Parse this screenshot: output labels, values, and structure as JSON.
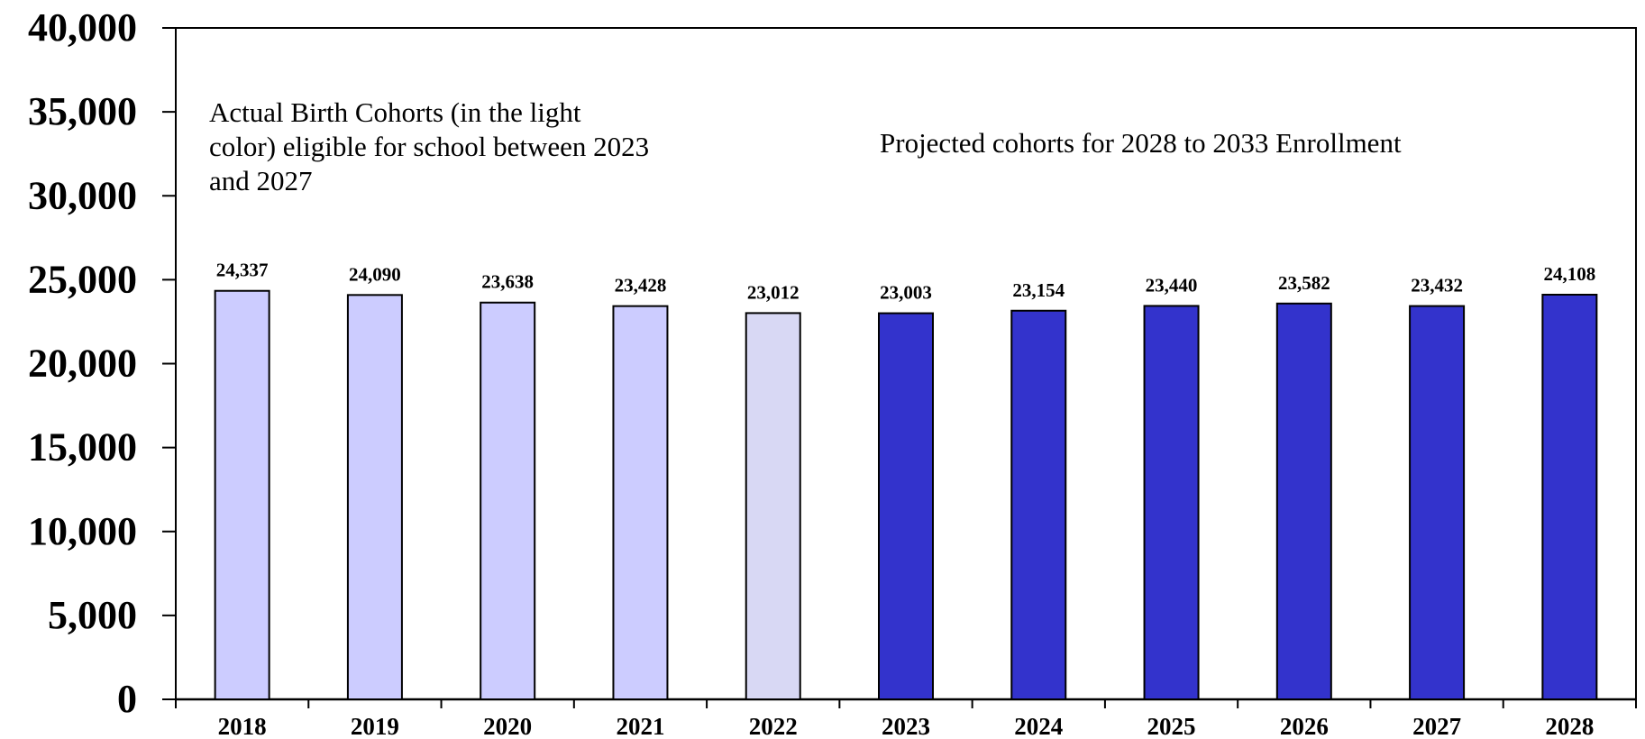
{
  "chart_data": {
    "type": "bar",
    "title": "",
    "xlabel": "",
    "ylabel": "",
    "categories": [
      "2018",
      "2019",
      "2020",
      "2021",
      "2022",
      "2023",
      "2024",
      "2025",
      "2026",
      "2027",
      "2028"
    ],
    "values": [
      24337,
      24090,
      23638,
      23428,
      23012,
      23003,
      23154,
      23440,
      23582,
      23432,
      24108
    ],
    "value_labels": [
      "24,337",
      "24,090",
      "23,638",
      "23,428",
      "23,012",
      "23,003",
      "23,154",
      "23,440",
      "23,582",
      "23,432",
      "24,108"
    ],
    "ylim": [
      0,
      40000
    ],
    "yticks": [
      0,
      5000,
      10000,
      15000,
      20000,
      25000,
      30000,
      35000,
      40000
    ],
    "ytick_labels": [
      "0",
      "5,000",
      "10,000",
      "15,000",
      "20,000",
      "25,000",
      "30,000",
      "35,000",
      "40,000"
    ],
    "grid": false,
    "legend": "none",
    "bar_colors": [
      "#ccccff",
      "#ccccff",
      "#ccccff",
      "#ccccff",
      "#d8d8f4",
      "#3333cc",
      "#3333cc",
      "#3333cc",
      "#3333cc",
      "#3333cc",
      "#3333cc"
    ],
    "annotations": [
      {
        "name": "actual-cohorts-note",
        "lines": [
          "Actual Birth Cohorts (in the light",
          "color) eligible for school between 2023",
          "and 2027"
        ]
      },
      {
        "name": "projected-cohorts-note",
        "lines": [
          "Projected cohorts for 2028 to 2033 Enrollment"
        ]
      }
    ]
  }
}
